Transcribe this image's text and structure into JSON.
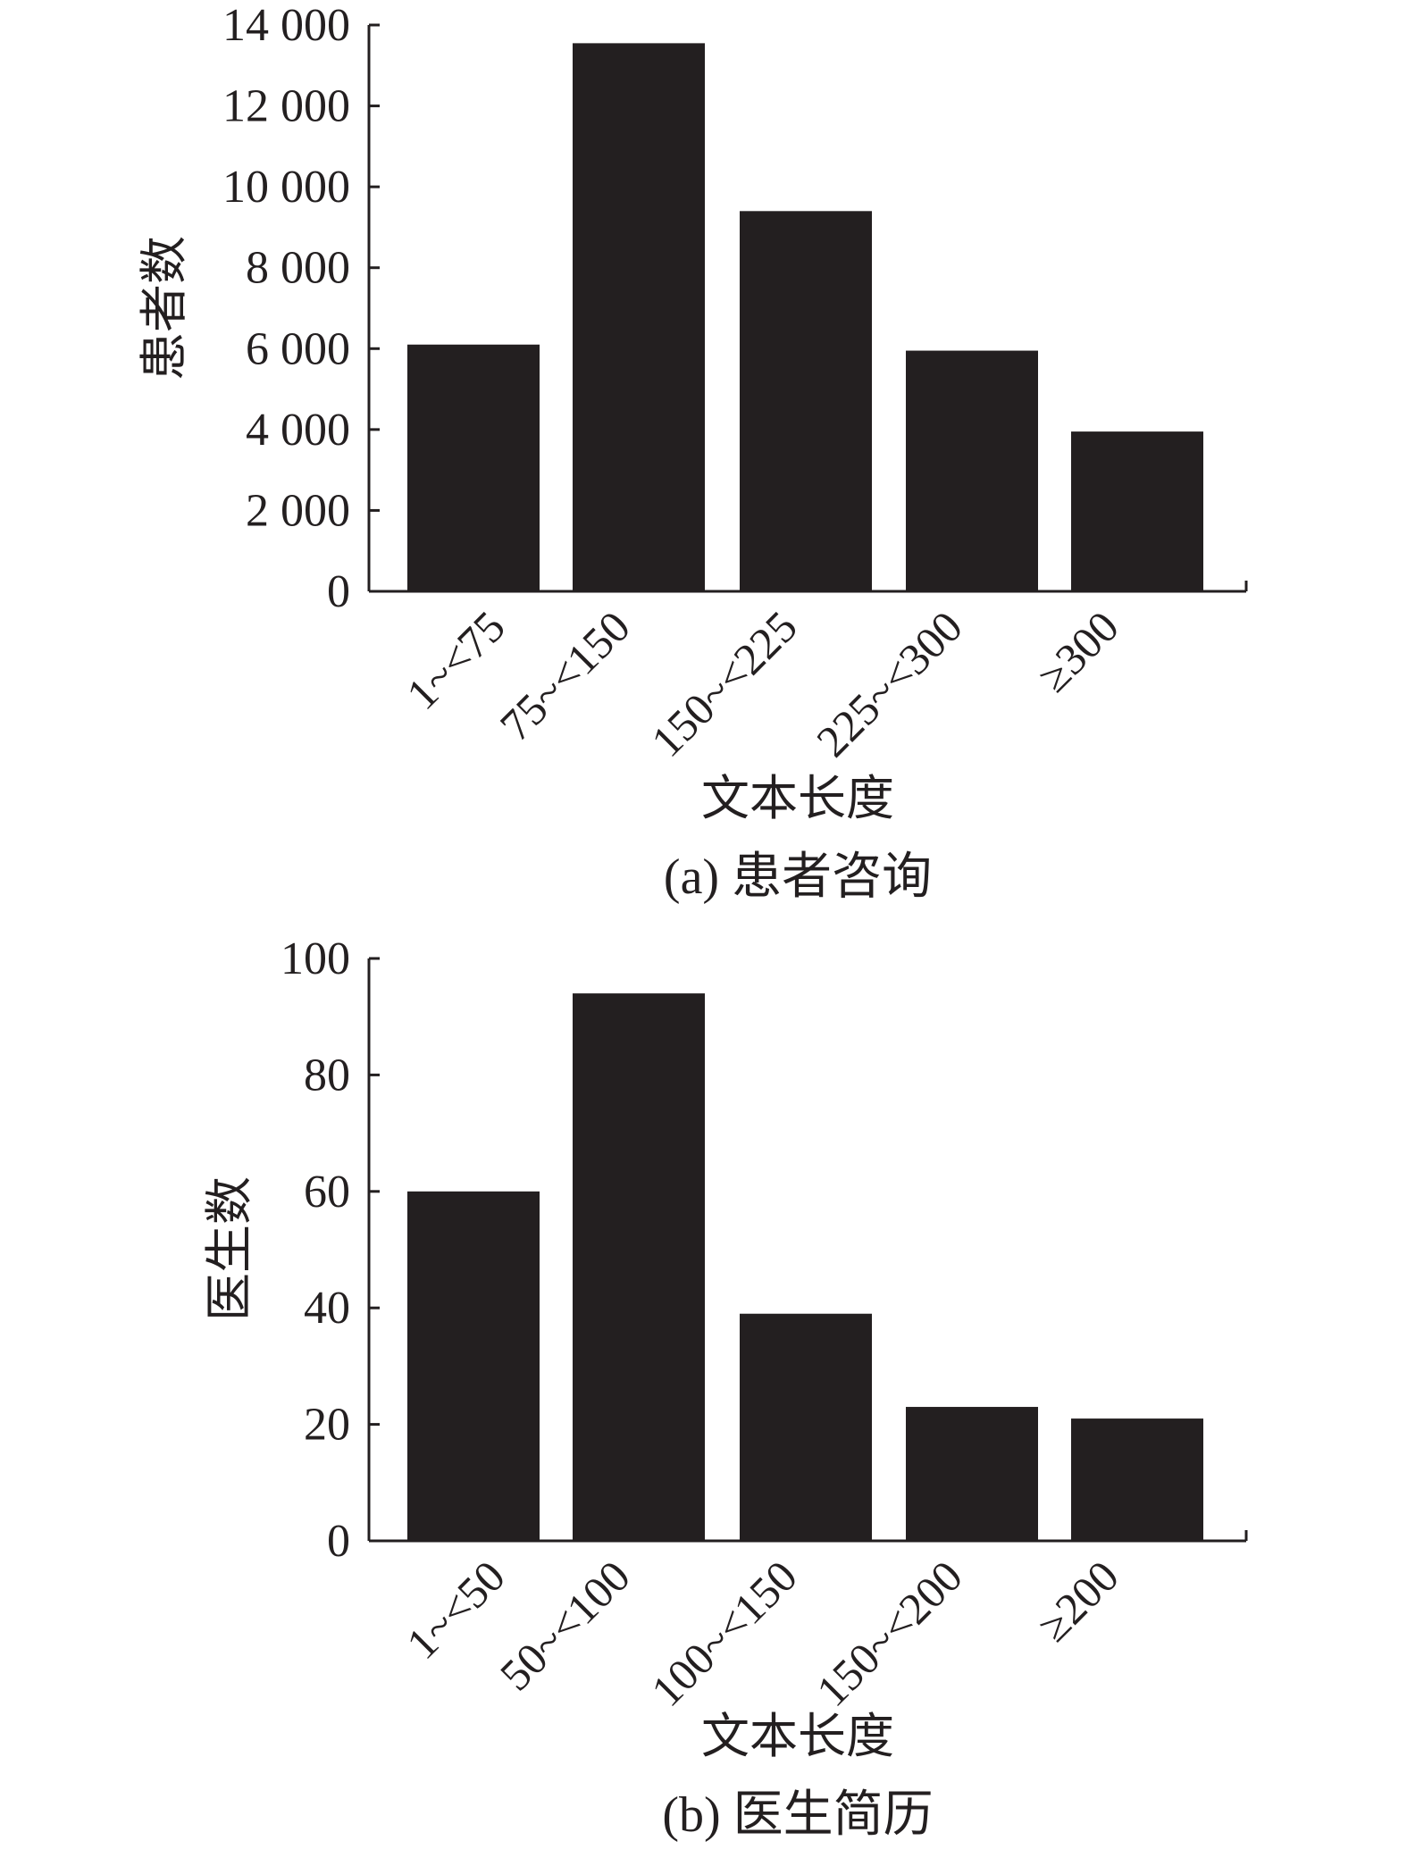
{
  "colors": {
    "bar": "#231f20",
    "axis": "#231f20",
    "background": "#ffffff"
  },
  "chart_data": [
    {
      "type": "bar",
      "panel": "a",
      "caption": "(a) 患者咨询",
      "title": "",
      "xlabel": "文本长度",
      "ylabel": "患者数",
      "categories": [
        "1~<75",
        "75~<150",
        "150~<225",
        "225~<300",
        "≥300"
      ],
      "values": [
        6100,
        13550,
        9400,
        5950,
        3950
      ],
      "ylim": [
        0,
        14000
      ],
      "yticks": [
        0,
        2000,
        4000,
        6000,
        8000,
        10000,
        12000,
        14000
      ],
      "ytick_labels": [
        "0",
        "2 000",
        "4 000",
        "6 000",
        "8 000",
        "10 000",
        "12 000",
        "14 000"
      ],
      "grid": false,
      "legend": "none"
    },
    {
      "type": "bar",
      "panel": "b",
      "caption": "(b) 医生简历",
      "title": "",
      "xlabel": "文本长度",
      "ylabel": "医生数",
      "categories": [
        "1~<50",
        "50~<100",
        "100~<150",
        "150~<200",
        "≥200"
      ],
      "values": [
        60,
        94,
        39,
        23,
        21
      ],
      "ylim": [
        0,
        100
      ],
      "yticks": [
        0,
        20,
        40,
        60,
        80,
        100
      ],
      "ytick_labels": [
        "0",
        "20",
        "40",
        "60",
        "80",
        "100"
      ],
      "grid": false,
      "legend": "none"
    }
  ]
}
